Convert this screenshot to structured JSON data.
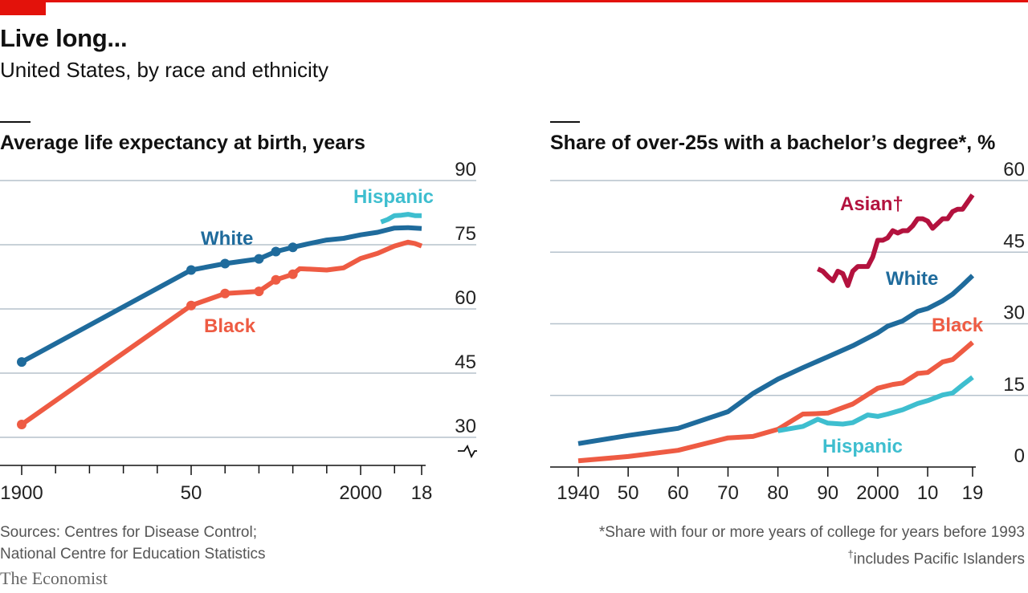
{
  "header": {
    "title": "Live long...",
    "subtitle": "United States, by race and ethnicity"
  },
  "colors": {
    "white": "#1f6b9c",
    "black": "#ee5b43",
    "hispanic": "#3ebecf",
    "asian": "#b3123e",
    "grid": "#b6c2cc",
    "accent": "#e3120b"
  },
  "footer": {
    "sources_line1": "Sources: Centres for Disease Control;",
    "sources_line2": "National Centre for Education Statistics",
    "note1": "*Share with four or more years of college for years before 1993",
    "note2_mark": "†",
    "note2": "includes Pacific Islanders",
    "brand": "The Economist"
  },
  "chart_data": [
    {
      "type": "line",
      "title": "Average life expectancy at birth, years",
      "ylim": [
        30,
        90
      ],
      "yticks": [
        "30",
        "45",
        "60",
        "75",
        "90"
      ],
      "ytick_values": [
        30,
        45,
        60,
        75,
        90
      ],
      "xlim": [
        1900,
        2018
      ],
      "xticks": [
        "1900",
        "50",
        "2000",
        "18"
      ],
      "xtick_values": [
        1900,
        1950,
        2000,
        2018
      ],
      "axis_break": true,
      "series": [
        {
          "name": "White",
          "color_key": "white",
          "points": [
            [
              1900,
              47.6
            ],
            [
              1950,
              69.1
            ],
            [
              1960,
              70.6
            ],
            [
              1970,
              71.7
            ],
            [
              1975,
              73.4
            ],
            [
              1980,
              74.4
            ],
            [
              1985,
              75.3
            ],
            [
              1990,
              76.1
            ],
            [
              1995,
              76.5
            ],
            [
              2000,
              77.3
            ],
            [
              2005,
              77.9
            ],
            [
              2010,
              78.9
            ],
            [
              2014,
              79.0
            ],
            [
              2016,
              78.9
            ],
            [
              2018,
              78.8
            ]
          ],
          "markers": [
            1900,
            1950,
            1960,
            1970,
            1975,
            1980
          ]
        },
        {
          "name": "Black",
          "color_key": "black",
          "points": [
            [
              1900,
              33.0
            ],
            [
              1950,
              60.8
            ],
            [
              1960,
              63.6
            ],
            [
              1970,
              64.1
            ],
            [
              1975,
              66.8
            ],
            [
              1980,
              68.1
            ],
            [
              1982,
              69.4
            ],
            [
              1985,
              69.3
            ],
            [
              1990,
              69.1
            ],
            [
              1995,
              69.6
            ],
            [
              2000,
              71.8
            ],
            [
              2005,
              73.0
            ],
            [
              2010,
              74.7
            ],
            [
              2014,
              75.6
            ],
            [
              2016,
              75.3
            ],
            [
              2018,
              74.7
            ]
          ],
          "markers": [
            1900,
            1950,
            1960,
            1970,
            1975,
            1980
          ]
        },
        {
          "name": "Hispanic",
          "color_key": "hispanic",
          "points": [
            [
              2006,
              80.3
            ],
            [
              2008,
              80.9
            ],
            [
              2010,
              81.8
            ],
            [
              2012,
              81.9
            ],
            [
              2014,
              82.1
            ],
            [
              2016,
              81.8
            ],
            [
              2018,
              81.8
            ]
          ],
          "markers": []
        }
      ]
    },
    {
      "type": "line",
      "title": "Share of over-25s with a bachelor’s degree*, %",
      "ylim": [
        0,
        60
      ],
      "yticks": [
        "0",
        "15",
        "30",
        "45",
        "60"
      ],
      "ytick_values": [
        0,
        15,
        30,
        45,
        60
      ],
      "xlim": [
        1940,
        2019
      ],
      "xticks": [
        "1940",
        "50",
        "60",
        "70",
        "80",
        "90",
        "2000",
        "10",
        "19"
      ],
      "xtick_values": [
        1940,
        1950,
        1960,
        1970,
        1980,
        1990,
        2000,
        2010,
        2019
      ],
      "series": [
        {
          "name": "Asian†",
          "color_key": "asian",
          "points": [
            [
              1988,
              41.5
            ],
            [
              1989,
              41.0
            ],
            [
              1990,
              39.9
            ],
            [
              1991,
              39.0
            ],
            [
              1992,
              41.0
            ],
            [
              1993,
              40.5
            ],
            [
              1994,
              38.0
            ],
            [
              1995,
              41.0
            ],
            [
              1996,
              42.0
            ],
            [
              1997,
              42.0
            ],
            [
              1998,
              42.0
            ],
            [
              1999,
              44.0
            ],
            [
              2000,
              47.5
            ],
            [
              2001,
              47.5
            ],
            [
              2002,
              48.0
            ],
            [
              2003,
              49.5
            ],
            [
              2004,
              49.0
            ],
            [
              2005,
              49.5
            ],
            [
              2006,
              49.5
            ],
            [
              2007,
              50.5
            ],
            [
              2008,
              52.0
            ],
            [
              2009,
              52.0
            ],
            [
              2010,
              51.5
            ],
            [
              2011,
              50.0
            ],
            [
              2012,
              51.0
            ],
            [
              2013,
              52.0
            ],
            [
              2014,
              52.0
            ],
            [
              2015,
              53.5
            ],
            [
              2016,
              54.0
            ],
            [
              2017,
              54.0
            ],
            [
              2018,
              55.5
            ],
            [
              2019,
              57.0
            ]
          ]
        },
        {
          "name": "White",
          "color_key": "white",
          "points": [
            [
              1940,
              4.9
            ],
            [
              1950,
              6.6
            ],
            [
              1960,
              8.1
            ],
            [
              1970,
              11.6
            ],
            [
              1975,
              15.4
            ],
            [
              1980,
              18.4
            ],
            [
              1985,
              20.8
            ],
            [
              1990,
              23.1
            ],
            [
              1995,
              25.4
            ],
            [
              2000,
              28.1
            ],
            [
              2002,
              29.5
            ],
            [
              2005,
              30.6
            ],
            [
              2008,
              32.6
            ],
            [
              2010,
              33.2
            ],
            [
              2013,
              34.8
            ],
            [
              2015,
              36.2
            ],
            [
              2017,
              38.1
            ],
            [
              2019,
              40.1
            ]
          ]
        },
        {
          "name": "Black",
          "color_key": "black",
          "points": [
            [
              1940,
              1.3
            ],
            [
              1950,
              2.2
            ],
            [
              1960,
              3.5
            ],
            [
              1970,
              6.1
            ],
            [
              1975,
              6.4
            ],
            [
              1980,
              7.9
            ],
            [
              1985,
              11.1
            ],
            [
              1988,
              11.2
            ],
            [
              1990,
              11.3
            ],
            [
              1995,
              13.2
            ],
            [
              2000,
              16.5
            ],
            [
              2003,
              17.3
            ],
            [
              2005,
              17.6
            ],
            [
              2008,
              19.6
            ],
            [
              2010,
              19.8
            ],
            [
              2013,
              22.0
            ],
            [
              2015,
              22.5
            ],
            [
              2017,
              24.3
            ],
            [
              2019,
              26.1
            ]
          ]
        },
        {
          "name": "Hispanic",
          "color_key": "hispanic",
          "points": [
            [
              1980,
              7.6
            ],
            [
              1985,
              8.5
            ],
            [
              1988,
              10.0
            ],
            [
              1990,
              9.2
            ],
            [
              1993,
              9.0
            ],
            [
              1995,
              9.3
            ],
            [
              1998,
              10.9
            ],
            [
              2000,
              10.6
            ],
            [
              2002,
              11.1
            ],
            [
              2005,
              12.0
            ],
            [
              2008,
              13.3
            ],
            [
              2010,
              13.9
            ],
            [
              2013,
              15.1
            ],
            [
              2015,
              15.5
            ],
            [
              2017,
              17.2
            ],
            [
              2019,
              18.8
            ]
          ]
        }
      ]
    }
  ]
}
